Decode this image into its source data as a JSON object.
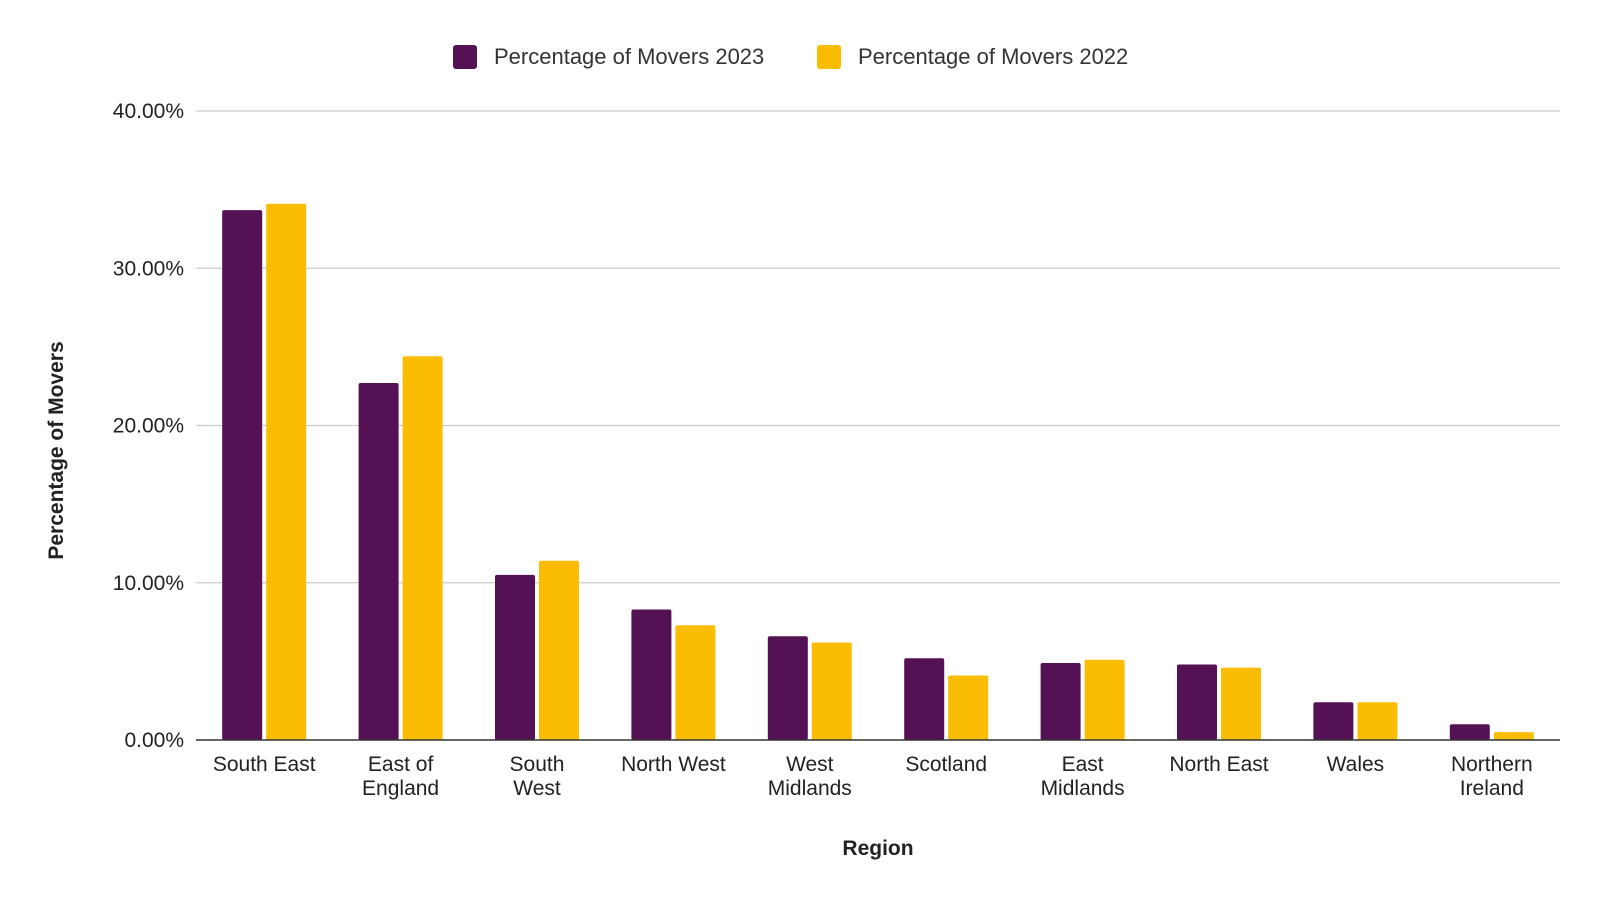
{
  "chart_data": {
    "type": "bar",
    "xlabel": "Region",
    "ylabel": "Percentage of Movers",
    "ylim": [
      0,
      40
    ],
    "yticks": [
      0,
      10,
      20,
      30,
      40
    ],
    "ytick_labels": [
      "0.00%",
      "10.00%",
      "20.00%",
      "30.00%",
      "40.00%"
    ],
    "grid": true,
    "legend_position": "top-center",
    "categories": [
      "South East",
      "East of England",
      "South West",
      "North West",
      "West Midlands",
      "Scotland",
      "East Midlands",
      "North East",
      "Wales",
      "Northern Ireland"
    ],
    "category_lines": [
      [
        "South East"
      ],
      [
        "East of",
        "England"
      ],
      [
        "South",
        "West"
      ],
      [
        "North West"
      ],
      [
        "West",
        "Midlands"
      ],
      [
        "Scotland"
      ],
      [
        "East",
        "Midlands"
      ],
      [
        "North East"
      ],
      [
        "Wales"
      ],
      [
        "Northern",
        "Ireland"
      ]
    ],
    "series": [
      {
        "name": "Percentage of Movers 2023",
        "color": "#541153",
        "values": [
          33.7,
          22.7,
          10.5,
          8.3,
          6.6,
          5.2,
          4.9,
          4.8,
          2.4,
          1.0
        ]
      },
      {
        "name": "Percentage of Movers 2022",
        "color": "#FBBC04",
        "values": [
          34.1,
          24.4,
          11.4,
          7.3,
          6.2,
          4.1,
          5.1,
          4.6,
          2.4,
          0.5
        ]
      }
    ]
  }
}
